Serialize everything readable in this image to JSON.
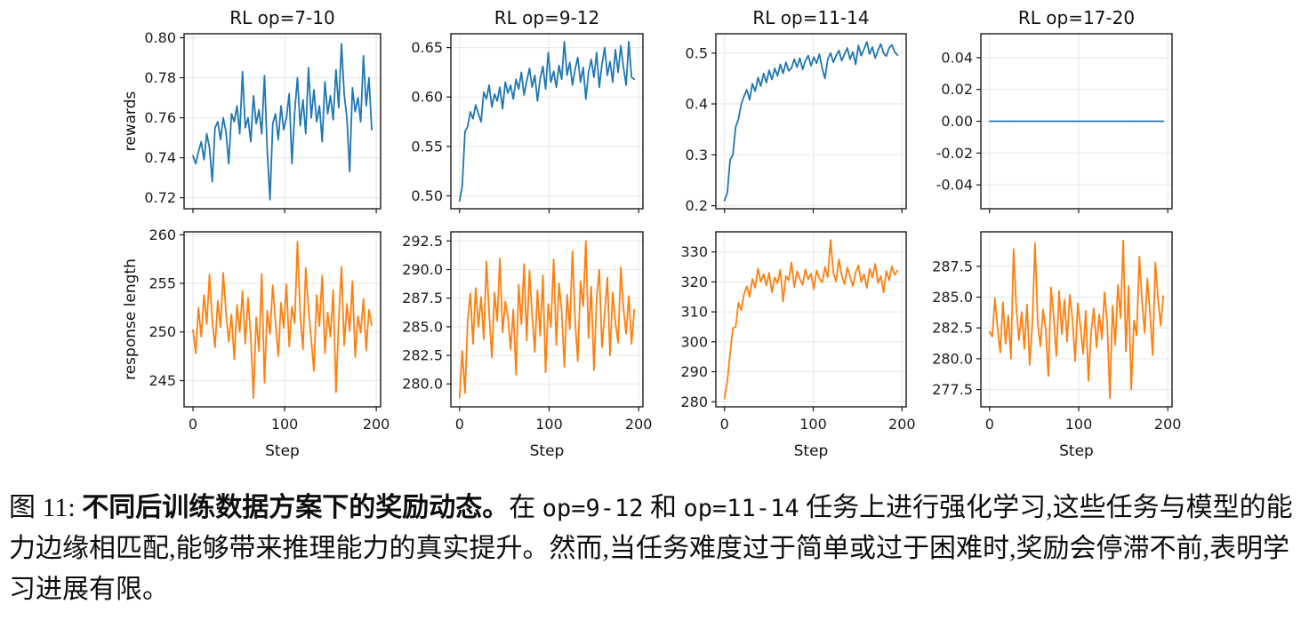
{
  "figure": {
    "caption": {
      "segments": [
        {
          "text": "图 11: ",
          "style": "regular"
        },
        {
          "text": "不同后训练数据方案下的奖励动态。",
          "style": "bold"
        },
        {
          "text": "在 ",
          "style": "regular"
        },
        {
          "text": "op=9-12",
          "style": "mono"
        },
        {
          "text": " 和 ",
          "style": "regular"
        },
        {
          "text": "op=11-14",
          "style": "mono"
        },
        {
          "text": " 任务上进行强化学习,这些任务与模型的能力边缘相匹配,能够带来推理能力的真实提升。然而,当任务难度过于简单或过于困难时,奖励会停滞不前,表明学习进展有限。",
          "style": "regular"
        }
      ]
    }
  },
  "chart_data": [
    {
      "type": "line",
      "title": "RL op=7-10",
      "ylabel": "rewards",
      "color": "#1f77b4",
      "grid": true,
      "xlim": [
        -9.75,
        204.75
      ],
      "xticks": [
        0,
        100,
        200
      ],
      "x_step_max": 195,
      "ylim": [
        0.7145,
        0.802
      ],
      "yticks": [
        0.72,
        0.74,
        0.76,
        0.78,
        0.8
      ],
      "ytick_labels": [
        "0.72",
        "0.74",
        "0.76",
        "0.78",
        "0.80"
      ],
      "values": [
        0.741,
        0.737,
        0.743,
        0.748,
        0.739,
        0.752,
        0.745,
        0.728,
        0.755,
        0.758,
        0.749,
        0.76,
        0.753,
        0.737,
        0.762,
        0.758,
        0.766,
        0.752,
        0.783,
        0.755,
        0.76,
        0.748,
        0.771,
        0.757,
        0.764,
        0.752,
        0.781,
        0.744,
        0.719,
        0.757,
        0.762,
        0.749,
        0.766,
        0.754,
        0.76,
        0.772,
        0.737,
        0.763,
        0.78,
        0.756,
        0.769,
        0.752,
        0.785,
        0.76,
        0.774,
        0.758,
        0.766,
        0.748,
        0.778,
        0.762,
        0.771,
        0.759,
        0.784,
        0.765,
        0.797,
        0.772,
        0.76,
        0.733,
        0.775,
        0.763,
        0.77,
        0.758,
        0.791,
        0.766,
        0.78,
        0.754
      ]
    },
    {
      "type": "line",
      "title": "RL op=9-12",
      "color": "#1f77b4",
      "grid": true,
      "xlim": [
        -9.75,
        204.75
      ],
      "xticks": [
        0,
        100,
        200
      ],
      "x_step_max": 195,
      "ylim": [
        0.487,
        0.664
      ],
      "yticks": [
        0.5,
        0.55,
        0.6,
        0.65
      ],
      "ytick_labels": [
        "0.50",
        "0.55",
        "0.60",
        "0.65"
      ],
      "values": [
        0.495,
        0.51,
        0.565,
        0.57,
        0.585,
        0.578,
        0.592,
        0.583,
        0.575,
        0.605,
        0.598,
        0.612,
        0.59,
        0.603,
        0.596,
        0.61,
        0.588,
        0.615,
        0.604,
        0.612,
        0.598,
        0.618,
        0.608,
        0.625,
        0.602,
        0.616,
        0.629,
        0.61,
        0.622,
        0.596,
        0.618,
        0.631,
        0.608,
        0.645,
        0.615,
        0.626,
        0.61,
        0.632,
        0.618,
        0.656,
        0.622,
        0.635,
        0.612,
        0.628,
        0.64,
        0.615,
        0.63,
        0.598,
        0.625,
        0.638,
        0.62,
        0.645,
        0.61,
        0.633,
        0.65,
        0.622,
        0.636,
        0.615,
        0.648,
        0.625,
        0.652,
        0.63,
        0.612,
        0.656,
        0.62,
        0.618
      ]
    },
    {
      "type": "line",
      "title": "RL op=11-14",
      "color": "#1f77b4",
      "grid": true,
      "xlim": [
        -9.75,
        204.75
      ],
      "xticks": [
        0,
        100,
        200
      ],
      "x_step_max": 195,
      "ylim": [
        0.194,
        0.538
      ],
      "yticks": [
        0.2,
        0.3,
        0.4,
        0.5
      ],
      "ytick_labels": [
        "0.2",
        "0.3",
        "0.4",
        "0.5"
      ],
      "values": [
        0.21,
        0.225,
        0.29,
        0.3,
        0.355,
        0.37,
        0.4,
        0.415,
        0.428,
        0.408,
        0.44,
        0.425,
        0.452,
        0.435,
        0.46,
        0.442,
        0.466,
        0.448,
        0.47,
        0.455,
        0.478,
        0.46,
        0.482,
        0.465,
        0.47,
        0.488,
        0.472,
        0.49,
        0.468,
        0.485,
        0.495,
        0.475,
        0.492,
        0.48,
        0.498,
        0.47,
        0.45,
        0.488,
        0.5,
        0.482,
        0.495,
        0.505,
        0.485,
        0.498,
        0.51,
        0.488,
        0.502,
        0.478,
        0.515,
        0.495,
        0.508,
        0.522,
        0.498,
        0.512,
        0.49,
        0.505,
        0.518,
        0.5,
        0.494,
        0.51,
        0.516,
        0.502,
        0.496
      ]
    },
    {
      "type": "line",
      "title": "RL op=17-20",
      "color": "#1f77b4",
      "grid": true,
      "xlim": [
        -9.75,
        204.75
      ],
      "xticks": [
        0,
        100,
        200
      ],
      "x_step_max": 195,
      "ylim": [
        -0.055,
        0.055
      ],
      "yticks": [
        -0.04,
        -0.02,
        0.0,
        0.02,
        0.04
      ],
      "ytick_labels": [
        "-0.04",
        "-0.02",
        "0.00",
        "0.02",
        "0.04"
      ],
      "values": [
        0.0,
        0.0,
        0.0,
        0.0,
        0.0,
        0.0,
        0.0,
        0.0,
        0.0,
        0.0,
        0.0,
        0.0,
        0.0,
        0.0,
        0.0,
        0.0,
        0.0,
        0.0,
        0.0,
        0.0,
        0.0,
        0.0,
        0.0,
        0.0,
        0.0,
        0.0,
        0.0,
        0.0,
        0.0,
        0.0,
        0.0,
        0.0,
        0.0,
        0.0,
        0.0,
        0.0,
        0.0,
        0.0,
        0.0,
        0.0
      ]
    },
    {
      "type": "line",
      "ylabel": "response length",
      "xlabel": "Step",
      "color": "#ff7f0e",
      "grid": true,
      "xlim": [
        -9.75,
        204.75
      ],
      "xticks": [
        0,
        100,
        200
      ],
      "xtick_labels": [
        "0",
        "100",
        "200"
      ],
      "x_step_max": 195,
      "ylim": [
        242.3,
        260.3
      ],
      "yticks": [
        245,
        250,
        255,
        260
      ],
      "ytick_labels": [
        "245",
        "250",
        "255",
        "260"
      ],
      "values": [
        250.2,
        247.8,
        252.5,
        249.5,
        253.8,
        250.8,
        255.9,
        251.2,
        248.4,
        253.2,
        250.5,
        256.1,
        252.0,
        249.0,
        251.8,
        247.2,
        252.8,
        250.0,
        254.2,
        248.8,
        253.5,
        249.6,
        243.2,
        251.5,
        248.0,
        256.0,
        244.8,
        252.2,
        249.8,
        254.8,
        251.0,
        247.5,
        253.0,
        250.4,
        254.9,
        248.5,
        252.6,
        250.9,
        259.3,
        251.8,
        248.2,
        256.6,
        252.4,
        249.2,
        246.0,
        253.8,
        250.6,
        255.8,
        247.8,
        252.0,
        249.5,
        254.3,
        243.8,
        251.2,
        256.7,
        248.6,
        252.9,
        250.1,
        255.2,
        247.4,
        251.6,
        249.9,
        253.4,
        248.1,
        252.3,
        250.7
      ]
    },
    {
      "type": "line",
      "xlabel": "Step",
      "color": "#ff7f0e",
      "grid": true,
      "xlim": [
        -9.75,
        204.75
      ],
      "xticks": [
        0,
        100,
        200
      ],
      "xtick_labels": [
        "0",
        "100",
        "200"
      ],
      "x_step_max": 195,
      "ylim": [
        278.0,
        293.3
      ],
      "yticks": [
        280.0,
        282.5,
        285.0,
        287.5,
        290.0,
        292.5
      ],
      "ytick_labels": [
        "280.0",
        "282.5",
        "285.0",
        "287.5",
        "290.0",
        "292.5"
      ],
      "values": [
        278.8,
        282.9,
        279.2,
        285.5,
        287.9,
        283.5,
        288.4,
        285.0,
        287.6,
        283.9,
        290.7,
        286.2,
        282.3,
        288.0,
        285.5,
        291.0,
        284.5,
        287.2,
        285.8,
        283.0,
        286.5,
        280.8,
        288.7,
        285.2,
        290.5,
        283.8,
        289.9,
        286.0,
        282.8,
        288.2,
        284.2,
        289.5,
        281.0,
        287.0,
        285.0,
        290.9,
        283.4,
        288.8,
        286.4,
        281.5,
        287.8,
        284.8,
        291.6,
        285.6,
        282.0,
        289.0,
        286.8,
        292.5,
        284.0,
        288.5,
        281.2,
        287.4,
        290.0,
        283.2,
        286.2,
        289.3,
        282.5,
        288.0,
        285.4,
        283.6,
        290.2,
        286.6,
        284.4,
        287.7,
        283.5,
        286.5
      ]
    },
    {
      "type": "line",
      "xlabel": "Step",
      "color": "#ff7f0e",
      "grid": true,
      "xlim": [
        -9.75,
        204.75
      ],
      "xticks": [
        0,
        100,
        200
      ],
      "xtick_labels": [
        "0",
        "100",
        "200"
      ],
      "x_step_max": 195,
      "ylim": [
        278.3,
        336.7
      ],
      "yticks": [
        280,
        290,
        300,
        310,
        320,
        330
      ],
      "ytick_labels": [
        "280",
        "290",
        "300",
        "310",
        "320",
        "330"
      ],
      "values": [
        281.0,
        287.0,
        296.0,
        304.5,
        305.0,
        313.0,
        310.5,
        316.0,
        318.5,
        315.0,
        321.0,
        318.0,
        324.5,
        320.0,
        322.5,
        318.8,
        323.0,
        316.5,
        321.5,
        319.5,
        324.0,
        313.5,
        322.0,
        320.5,
        326.5,
        318.2,
        323.5,
        321.0,
        319.0,
        324.2,
        320.8,
        322.8,
        317.5,
        323.8,
        321.2,
        319.8,
        325.0,
        321.5,
        334.0,
        323.0,
        320.2,
        327.5,
        322.2,
        319.2,
        324.8,
        321.8,
        318.5,
        323.2,
        325.5,
        320.0,
        322.6,
        318.0,
        324.4,
        321.4,
        326.0,
        319.6,
        322.0,
        316.5,
        323.6,
        320.6,
        325.2,
        322.4,
        323.8
      ]
    },
    {
      "type": "line",
      "xlabel": "Step",
      "color": "#ff7f0e",
      "grid": true,
      "xlim": [
        -9.75,
        204.75
      ],
      "xticks": [
        0,
        100,
        200
      ],
      "xtick_labels": [
        "0",
        "100",
        "200"
      ],
      "x_step_max": 195,
      "ylim": [
        276.1,
        290.3
      ],
      "yticks": [
        277.5,
        280.0,
        282.5,
        285.0,
        287.5
      ],
      "ytick_labels": [
        "277.5",
        "280.0",
        "282.5",
        "285.0",
        "287.5"
      ],
      "values": [
        282.2,
        281.8,
        284.9,
        282.5,
        280.5,
        284.6,
        281.2,
        283.5,
        280.0,
        288.9,
        284.2,
        281.5,
        283.8,
        280.8,
        284.4,
        279.5,
        282.8,
        289.4,
        283.0,
        281.0,
        284.0,
        282.4,
        278.6,
        285.8,
        283.4,
        280.2,
        285.5,
        282.0,
        284.8,
        281.4,
        285.2,
        283.2,
        279.8,
        284.5,
        282.6,
        280.4,
        283.9,
        278.2,
        282.2,
        284.1,
        280.9,
        283.6,
        281.6,
        285.4,
        282.9,
        276.8,
        284.3,
        281.1,
        286.0,
        283.3,
        289.6,
        280.6,
        285.9,
        277.5,
        283.1,
        281.9,
        288.3,
        284.7,
        282.1,
        286.5,
        283.7,
        280.3,
        287.8,
        284.9,
        282.7,
        285.1
      ]
    }
  ]
}
